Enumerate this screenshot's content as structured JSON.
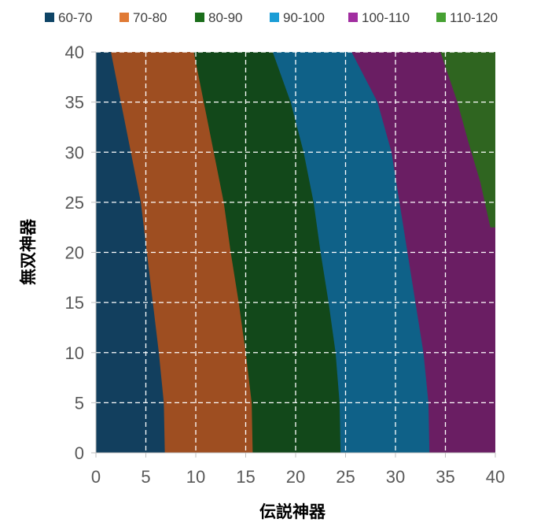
{
  "chart_data": {
    "type": "contour",
    "xlabel": "伝説神器",
    "ylabel": "無双神器",
    "xlim": [
      0,
      40
    ],
    "ylim": [
      0,
      40
    ],
    "x_ticks": [
      "0",
      "5",
      "10",
      "15",
      "20",
      "25",
      "30",
      "35",
      "40"
    ],
    "y_ticks": [
      "0",
      "5",
      "10",
      "15",
      "20",
      "25",
      "30",
      "35",
      "40"
    ],
    "grid": true,
    "legend_position": "top",
    "bands": [
      {
        "name": "60-70",
        "color": "#0e4466",
        "fill": "#123f5e"
      },
      {
        "name": "70-80",
        "color": "#e07a35",
        "fill": "#9e4e21"
      },
      {
        "name": "80-90",
        "color": "#1a6d1a",
        "fill": "#12481a"
      },
      {
        "name": "90-100",
        "color": "#1a9dd6",
        "fill": "#0f6188"
      },
      {
        "name": "100-110",
        "color": "#a12ea0",
        "fill": "#6a1e63"
      },
      {
        "name": "110-120",
        "color": "#46a132",
        "fill": "#2f6520"
      }
    ],
    "boundaries": [
      {
        "name": "70",
        "points": [
          [
            6.9,
            0
          ],
          [
            6.8,
            5
          ],
          [
            6.3,
            10
          ],
          [
            5.7,
            15
          ],
          [
            5.1,
            20
          ],
          [
            4.5,
            25
          ],
          [
            3.5,
            30
          ],
          [
            2.5,
            35
          ],
          [
            1.5,
            40
          ]
        ]
      },
      {
        "name": "80",
        "points": [
          [
            15.7,
            0
          ],
          [
            15.6,
            5
          ],
          [
            15.0,
            10
          ],
          [
            14.3,
            15
          ],
          [
            13.5,
            20
          ],
          [
            12.8,
            25
          ],
          [
            11.8,
            30
          ],
          [
            10.8,
            35
          ],
          [
            9.8,
            40
          ]
        ]
      },
      {
        "name": "90",
        "points": [
          [
            24.5,
            0
          ],
          [
            24.4,
            5
          ],
          [
            24.0,
            10
          ],
          [
            23.3,
            15
          ],
          [
            22.5,
            20
          ],
          [
            21.8,
            25
          ],
          [
            20.8,
            30
          ],
          [
            19.5,
            35
          ],
          [
            17.7,
            40
          ]
        ]
      },
      {
        "name": "100",
        "points": [
          [
            33.4,
            0
          ],
          [
            33.3,
            5
          ],
          [
            32.8,
            10
          ],
          [
            32.0,
            15
          ],
          [
            31.2,
            20
          ],
          [
            30.4,
            25
          ],
          [
            29.6,
            30
          ],
          [
            28.2,
            35
          ],
          [
            25.6,
            40
          ]
        ]
      },
      {
        "name": "110",
        "points": [
          [
            39.5,
            22.5
          ],
          [
            38.5,
            27
          ],
          [
            37.3,
            31
          ],
          [
            36.2,
            35
          ],
          [
            34.5,
            40
          ]
        ]
      }
    ]
  }
}
